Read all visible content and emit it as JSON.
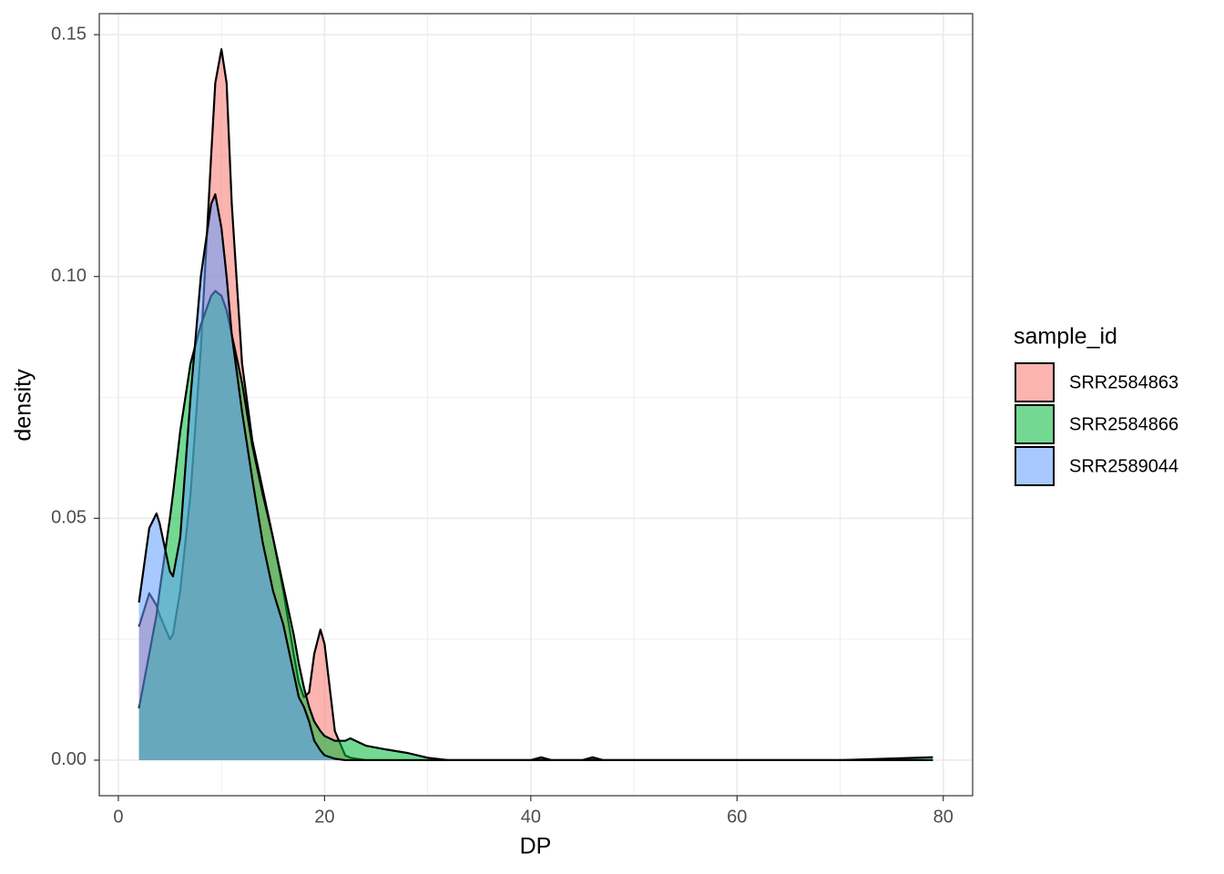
{
  "chart_data": {
    "type": "density",
    "x_label": "DP",
    "y_label": "density",
    "legend_title": "sample_id",
    "legend_position": "right",
    "x": [
      2,
      3,
      3.7,
      4,
      5,
      5.3,
      6,
      7,
      8,
      9,
      9.4,
      10,
      10.5,
      11,
      12,
      13,
      14,
      15,
      16,
      17,
      17.5,
      18,
      18.5,
      19,
      19.6,
      20,
      21,
      22,
      22.5,
      24,
      26,
      28,
      30,
      32,
      35,
      40,
      41,
      42,
      45,
      46,
      47,
      50,
      60,
      70,
      79
    ],
    "series": [
      {
        "name": "SRR2584863",
        "color": "#F8766D",
        "values": [
          0.0276,
          0.0345,
          0.032,
          0.03,
          0.025,
          0.026,
          0.035,
          0.055,
          0.085,
          0.125,
          0.14,
          0.147,
          0.14,
          0.115,
          0.082,
          0.066,
          0.056,
          0.046,
          0.035,
          0.022,
          0.016,
          0.013,
          0.014,
          0.022,
          0.027,
          0.024,
          0.006,
          0.001,
          0.0005,
          0,
          0,
          0,
          0,
          0,
          0,
          0,
          0.0003,
          0,
          0,
          0.0003,
          0,
          0,
          0,
          0,
          0
        ]
      },
      {
        "name": "SRR2584866",
        "color": "#00BA38",
        "values": [
          0.0107,
          0.022,
          0.03,
          0.035,
          0.05,
          0.055,
          0.068,
          0.082,
          0.09,
          0.096,
          0.097,
          0.096,
          0.093,
          0.088,
          0.078,
          0.065,
          0.055,
          0.046,
          0.036,
          0.026,
          0.02,
          0.015,
          0.011,
          0.008,
          0.006,
          0.005,
          0.004,
          0.004,
          0.0045,
          0.003,
          0.0022,
          0.0015,
          0.0005,
          0,
          0,
          0,
          0.0006,
          0,
          0,
          0.0006,
          0,
          0,
          0,
          0,
          0.0006
        ]
      },
      {
        "name": "SRR2589044",
        "color": "#619CFF",
        "values": [
          0.0326,
          0.048,
          0.051,
          0.049,
          0.039,
          0.038,
          0.046,
          0.075,
          0.1,
          0.115,
          0.117,
          0.11,
          0.1,
          0.088,
          0.072,
          0.058,
          0.045,
          0.035,
          0.028,
          0.018,
          0.013,
          0.011,
          0.008,
          0.004,
          0.002,
          0.001,
          0.0003,
          0,
          0,
          0,
          0,
          0,
          0,
          0,
          0,
          0,
          0,
          0,
          0,
          0,
          0,
          0,
          0,
          0,
          0
        ]
      }
    ],
    "xlim": [
      -1.85,
      82.85
    ],
    "xticks": [
      0,
      20,
      40,
      60,
      80
    ],
    "x_minor_ticks": [
      10,
      30,
      50,
      70
    ],
    "ylim": [
      -0.00735,
      0.15435
    ],
    "yticks": [
      {
        "value": 0,
        "label": "0.00"
      },
      {
        "value": 0.05,
        "label": "0.05"
      },
      {
        "value": 0.1,
        "label": "0.10"
      },
      {
        "value": 0.15,
        "label": "0.15"
      }
    ],
    "y_minor_ticks": [
      0.025,
      0.075,
      0.125
    ],
    "grid": true
  }
}
